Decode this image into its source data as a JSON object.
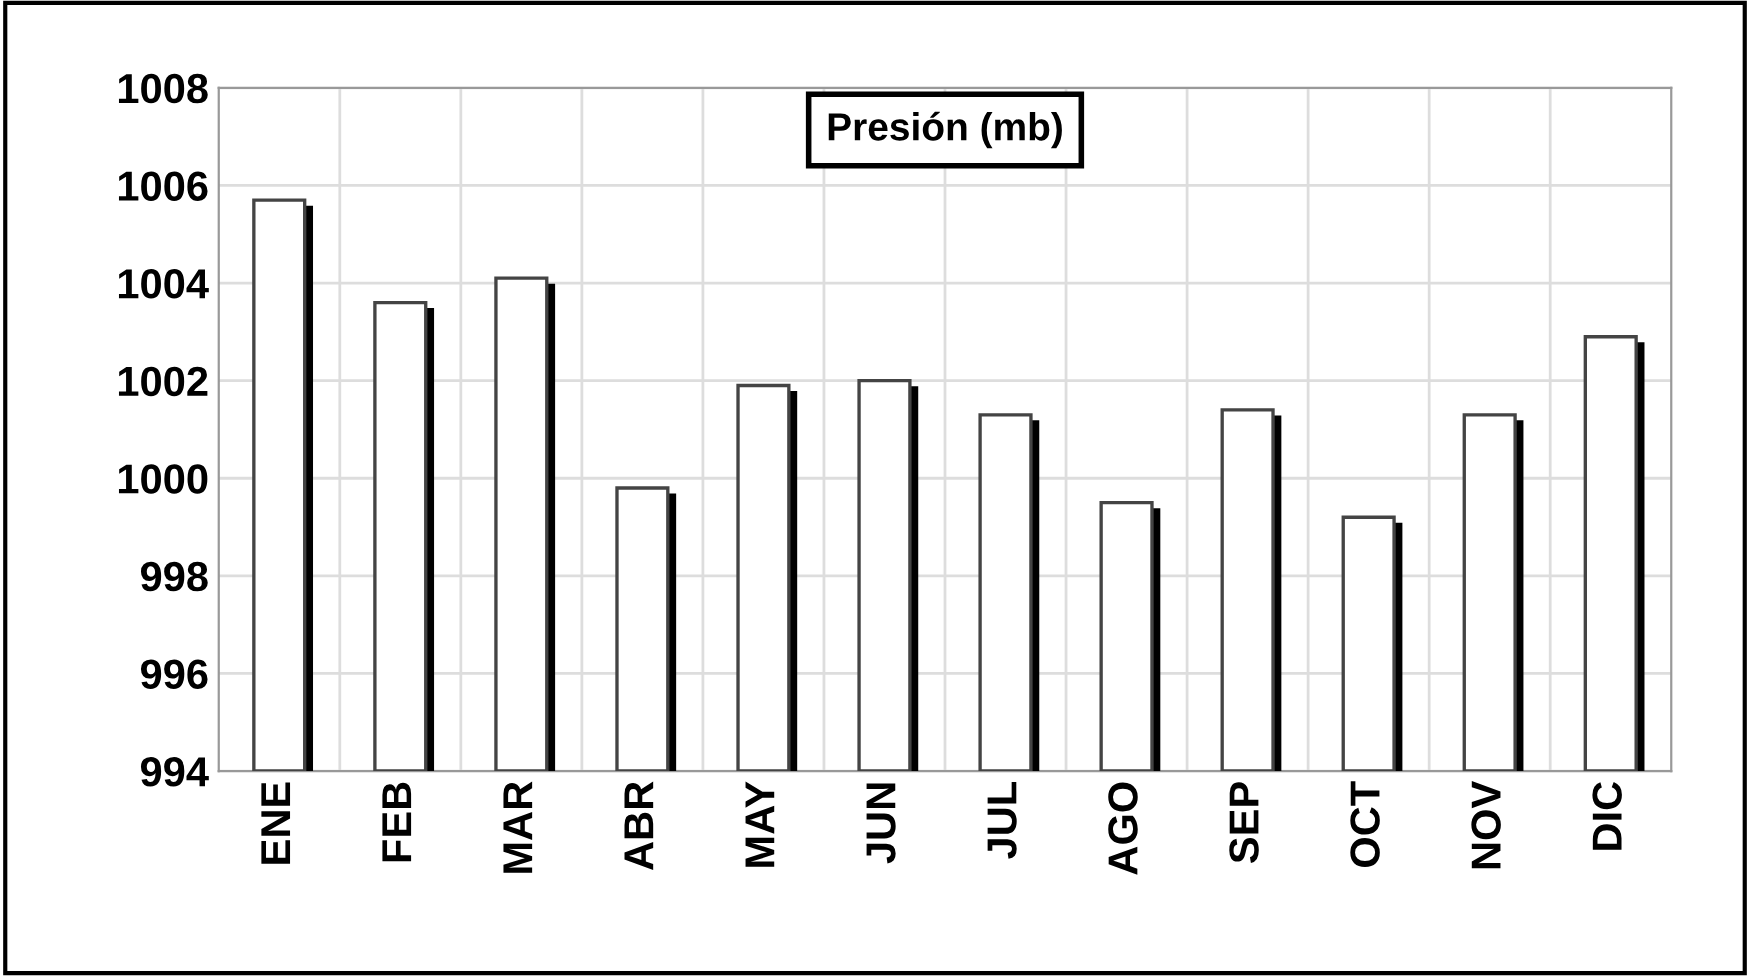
{
  "chart_data": {
    "type": "bar",
    "title": "Presión (mb)",
    "categories": [
      "ENE",
      "FEB",
      "MAR",
      "ABR",
      "MAY",
      "JUN",
      "JUL",
      "AGO",
      "SEP",
      "OCT",
      "NOV",
      "DIC"
    ],
    "values": [
      1005.7,
      1003.6,
      1004.1,
      999.8,
      1001.9,
      1002.0,
      1001.3,
      999.5,
      1001.4,
      999.2,
      1001.3,
      1002.9
    ],
    "color": "#ffffff",
    "ylim": [
      994,
      1008
    ],
    "yticks": [
      994,
      996,
      998,
      1000,
      1002,
      1004,
      1006,
      1008
    ],
    "grid": true
  }
}
